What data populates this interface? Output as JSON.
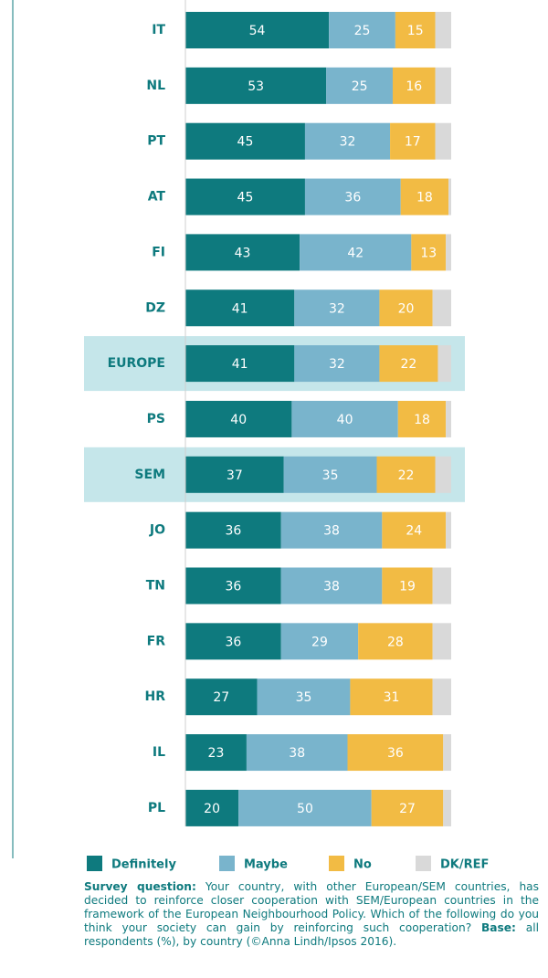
{
  "chart_data": {
    "type": "stacked-barh",
    "categories": [
      "IT",
      "NL",
      "PT",
      "AT",
      "FI",
      "DZ",
      "EUROPE",
      "PS",
      "SEM",
      "JO",
      "TN",
      "FR",
      "HR",
      "IL",
      "PL"
    ],
    "highlight": [
      "EUROPE",
      "SEM"
    ],
    "xlim": [
      0,
      100
    ],
    "series": [
      {
        "name": "Definitely",
        "color": "#0e7a7e",
        "labels": true,
        "values": [
          54,
          53,
          45,
          45,
          43,
          41,
          41,
          40,
          37,
          36,
          36,
          36,
          27,
          23,
          20
        ]
      },
      {
        "name": "Maybe",
        "color": "#79b4cc",
        "labels": true,
        "values": [
          25,
          25,
          32,
          36,
          42,
          32,
          32,
          40,
          35,
          38,
          38,
          29,
          35,
          38,
          50
        ]
      },
      {
        "name": "No",
        "color": "#f2bb44",
        "labels": true,
        "values": [
          15,
          16,
          17,
          18,
          13,
          20,
          22,
          18,
          22,
          24,
          19,
          28,
          31,
          36,
          27
        ]
      },
      {
        "name": "DK/REF",
        "color": "#d9d9d9",
        "labels": false,
        "values": [
          6,
          6,
          6,
          1,
          2,
          7,
          5,
          2,
          6,
          2,
          7,
          7,
          7,
          3,
          3
        ]
      }
    ]
  },
  "note": [
    "Survey question:",
    " Your country, with other European/SEM countries, has decided to reinforce closer cooperation with SEM/European countries in the framework of the European Neighbourhood Policy. Which of the following do you think your society can gain by reinforcing such cooperation? ",
    "Base:",
    " all respondents (%), by country (©Anna Lindh/Ipsos 2016)."
  ]
}
